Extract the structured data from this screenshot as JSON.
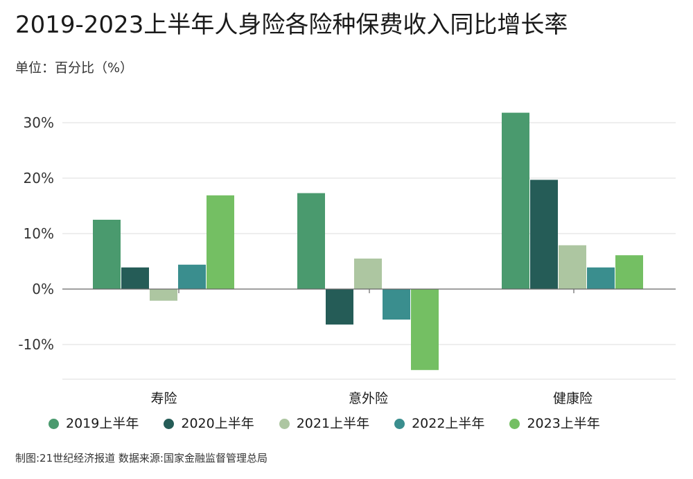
{
  "title": "2019-2023上半年人身险各险种保费收入同比增长率",
  "unit": "单位：百分比（%）",
  "source": "制图:21世纪经济报道 数据来源:国家金融监督管理总局",
  "chart_data": {
    "type": "bar",
    "categories": [
      "寿险",
      "意外险",
      "健康险"
    ],
    "series": [
      {
        "name": "2019上半年",
        "color": "#4a9a6e",
        "values": [
          12.5,
          17.3,
          31.8
        ]
      },
      {
        "name": "2020上半年",
        "color": "#255c57",
        "values": [
          3.9,
          -6.4,
          19.7
        ]
      },
      {
        "name": "2021上半年",
        "color": "#adc6a1",
        "values": [
          -2.1,
          5.5,
          7.9
        ]
      },
      {
        "name": "2022上半年",
        "color": "#3a8e8e",
        "values": [
          4.4,
          -5.5,
          3.9
        ]
      },
      {
        "name": "2023上半年",
        "color": "#74bf63",
        "values": [
          16.9,
          -14.6,
          6.1
        ]
      }
    ],
    "yticks": [
      30,
      20,
      10,
      0,
      -10
    ],
    "ytick_labels": [
      "30%",
      "20%",
      "10%",
      "0%",
      "-10%"
    ],
    "ylim": [
      -16,
      32
    ],
    "grid": true,
    "legend_position": "bottom"
  }
}
